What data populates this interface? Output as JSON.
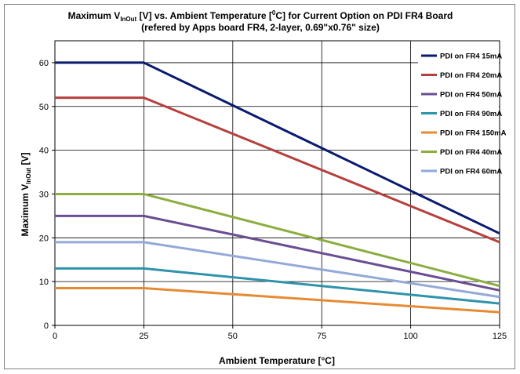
{
  "chart_data": {
    "type": "line",
    "title": {
      "line1_part1": "Maximum V",
      "line1_sub": "InOut",
      "line1_part2": " [V] vs. Ambient Temperature [",
      "line1_sup": "0",
      "line1_part3": "C] for Current Option on PDI FR4 Board",
      "line2": "(refered by Apps board FR4, 2-layer, 0.69\"x0.76\" size)"
    },
    "xlabel": "Ambient Temperature [°C]",
    "ylabel": {
      "main": "Maximum  V",
      "sub": "InOut",
      "unit": " [V]"
    },
    "xlim": [
      0,
      125
    ],
    "ylim": [
      0,
      65
    ],
    "xticks": [
      0,
      25,
      50,
      75,
      100,
      125
    ],
    "yticks": [
      0,
      10,
      20,
      30,
      40,
      50,
      60
    ],
    "grid": true,
    "legend_position": "top-right",
    "x": [
      0,
      25,
      125
    ],
    "series": [
      {
        "name": "PDI on FR4 15mA",
        "color": "#0a1a6e",
        "values": [
          60,
          60,
          21
        ]
      },
      {
        "name": "PDI on FR4 20mA",
        "color": "#b5403d",
        "values": [
          52,
          52,
          19
        ]
      },
      {
        "name": "PDI on FR4 50mA",
        "color": "#6a4e94",
        "values": [
          25,
          25,
          8
        ]
      },
      {
        "name": "PDI on FR4 90mA",
        "color": "#2e93ab",
        "values": [
          13,
          13,
          5
        ]
      },
      {
        "name": "PDI on FR4 150mA",
        "color": "#e78a34",
        "values": [
          8.5,
          8.5,
          3
        ]
      },
      {
        "name": "PDI on FR4 40mA",
        "color": "#8cad3f",
        "values": [
          30,
          30,
          9
        ]
      },
      {
        "name": "PDI on FR4 60mA",
        "color": "#93a9d8",
        "values": [
          19,
          19,
          6.5
        ]
      }
    ]
  }
}
